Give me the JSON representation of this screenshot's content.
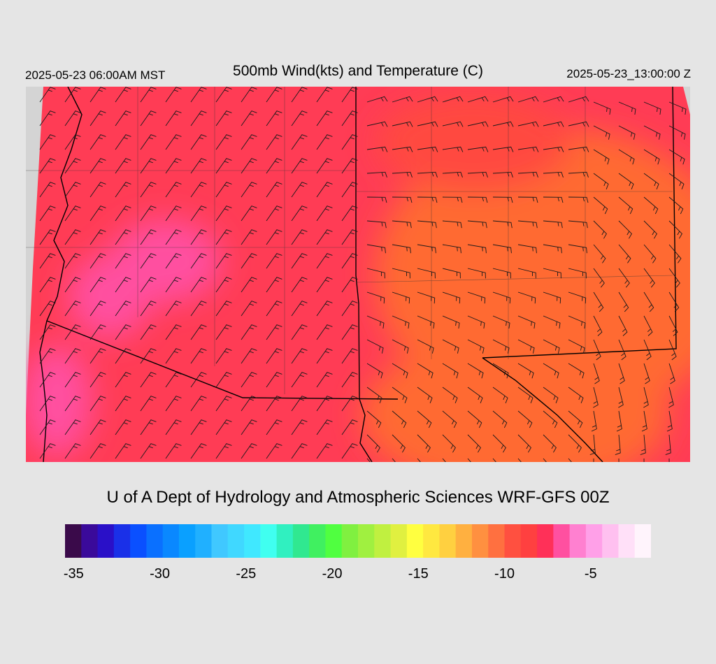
{
  "header": {
    "valid_local": "2025-05-23 06:00AM MST",
    "title": "500mb Wind(kts) and Temperature (C)",
    "valid_utc": "2025-05-23_13:00:00 Z"
  },
  "footer": {
    "credit": "U of A Dept of Hydrology and Atmospheric Sciences WRF-GFS 00Z"
  },
  "colorbar": {
    "colors": [
      "#3a0a4a",
      "#3a0a9a",
      "#2a10c8",
      "#1a30e8",
      "#0a50ff",
      "#0a70ff",
      "#0a88ff",
      "#0aa0ff",
      "#20b0ff",
      "#40c8ff",
      "#40d8ff",
      "#40e8ff",
      "#40fff0",
      "#30f0c0",
      "#30e890",
      "#40f060",
      "#50ff40",
      "#80f040",
      "#a0f040",
      "#c0f040",
      "#e0f040",
      "#ffff40",
      "#ffe840",
      "#ffd040",
      "#ffb040",
      "#ff9040",
      "#ff7040",
      "#ff5040",
      "#ff4040",
      "#ff3058",
      "#ff50a0",
      "#ff80d0",
      "#ffa0e8",
      "#ffc0f0",
      "#ffe0f8",
      "#fff4fc"
    ],
    "tick_labels": [
      "-35",
      "-30",
      "-25",
      "-20",
      "-15",
      "-10",
      "-5"
    ],
    "tick_values": [
      -35,
      -30,
      -25,
      -20,
      -15,
      -10,
      -5
    ],
    "min": -35.5,
    "max": -1.5
  },
  "map": {
    "outside_domain_color": "#d4d4d4",
    "warm_color": "#ff5a3c",
    "core_color": "#ff3c55",
    "cold_color": "#ff55a8",
    "border_color": "#000000"
  }
}
